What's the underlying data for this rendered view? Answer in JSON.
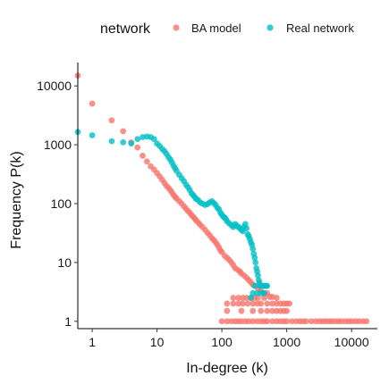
{
  "chart_data": {
    "type": "scatter",
    "xlabel": "In-degree (k)",
    "ylabel": "Frequency P(k)",
    "x_scale": "log",
    "y_scale": "log",
    "xlim": [
      0.6,
      25000
    ],
    "ylim": [
      0.75,
      25000
    ],
    "x_ticks": [
      {
        "value": 1,
        "label": "1"
      },
      {
        "value": 10,
        "label": "10"
      },
      {
        "value": 100,
        "label": "100"
      },
      {
        "value": 1000,
        "label": "1000"
      },
      {
        "value": 10000,
        "label": "10000"
      }
    ],
    "y_ticks": [
      {
        "value": 1,
        "label": "1"
      },
      {
        "value": 10,
        "label": "10"
      },
      {
        "value": 100,
        "label": "100"
      },
      {
        "value": 1000,
        "label": "1000"
      },
      {
        "value": 10000,
        "label": "10000"
      }
    ],
    "grid": false,
    "legend": {
      "title": "network",
      "placement": "top",
      "entries": [
        "BA model",
        "Real network"
      ]
    },
    "series": [
      {
        "name": "BA model",
        "color": "#F8766D",
        "points": [
          [
            0.6,
            15000
          ],
          [
            1,
            5000
          ],
          [
            2,
            2600
          ],
          [
            3,
            1700
          ],
          [
            4,
            1100
          ],
          [
            5,
            900
          ],
          [
            6,
            650
          ],
          [
            7,
            520
          ],
          [
            8,
            430
          ],
          [
            9,
            380
          ],
          [
            10,
            330
          ],
          [
            11,
            290
          ],
          [
            12,
            255
          ],
          [
            13,
            225
          ],
          [
            14,
            200
          ],
          [
            15,
            185
          ],
          [
            16,
            170
          ],
          [
            17,
            155
          ],
          [
            18,
            140
          ],
          [
            19,
            130
          ],
          [
            20,
            122
          ],
          [
            22,
            110
          ],
          [
            24,
            100
          ],
          [
            26,
            90
          ],
          [
            28,
            82
          ],
          [
            30,
            75
          ],
          [
            32,
            70
          ],
          [
            34,
            64
          ],
          [
            36,
            60
          ],
          [
            38,
            56
          ],
          [
            40,
            52
          ],
          [
            43,
            48
          ],
          [
            46,
            44
          ],
          [
            50,
            40
          ],
          [
            55,
            36
          ],
          [
            60,
            32
          ],
          [
            65,
            29
          ],
          [
            70,
            26
          ],
          [
            75,
            24
          ],
          [
            80,
            22
          ],
          [
            85,
            20
          ],
          [
            90,
            18
          ],
          [
            95,
            16
          ],
          [
            100,
            15
          ],
          [
            110,
            13
          ],
          [
            120,
            12
          ],
          [
            130,
            11
          ],
          [
            140,
            10
          ],
          [
            150,
            9
          ],
          [
            160,
            8
          ],
          [
            175,
            7.5
          ],
          [
            190,
            7
          ],
          [
            200,
            6.5
          ],
          [
            220,
            6
          ],
          [
            240,
            5.5
          ],
          [
            260,
            5
          ],
          [
            280,
            4.6
          ],
          [
            300,
            4.2
          ],
          [
            330,
            4
          ],
          [
            360,
            3.6
          ],
          [
            400,
            3.3
          ],
          [
            450,
            3
          ],
          [
            500,
            3
          ],
          [
            550,
            2.6
          ],
          [
            600,
            2.6
          ],
          [
            700,
            2.5
          ],
          [
            800,
            2
          ],
          [
            900,
            2
          ],
          [
            1000,
            2
          ],
          [
            1100,
            2
          ],
          [
            120,
            1.5
          ],
          [
            200,
            1.5
          ],
          [
            300,
            1.5
          ],
          [
            400,
            1.5
          ],
          [
            500,
            1.5
          ],
          [
            600,
            1.5
          ],
          [
            700,
            1.5
          ],
          [
            800,
            1.5
          ],
          [
            900,
            1.5
          ],
          [
            1000,
            1.5
          ],
          [
            120,
            2
          ],
          [
            150,
            2
          ],
          [
            180,
            2
          ],
          [
            210,
            2
          ],
          [
            250,
            2
          ],
          [
            300,
            2
          ],
          [
            350,
            2
          ],
          [
            400,
            2
          ],
          [
            500,
            2
          ],
          [
            600,
            2
          ],
          [
            700,
            2
          ],
          [
            150,
            2.5
          ],
          [
            180,
            2.5
          ],
          [
            210,
            2.5
          ],
          [
            240,
            2.5
          ],
          [
            280,
            2.5
          ],
          [
            320,
            2.5
          ],
          [
            360,
            2.5
          ],
          [
            450,
            2.5
          ],
          [
            100,
            1
          ],
          [
            120,
            1
          ],
          [
            140,
            1
          ],
          [
            160,
            1
          ],
          [
            180,
            1
          ],
          [
            200,
            1
          ],
          [
            230,
            1
          ],
          [
            260,
            1
          ],
          [
            300,
            1
          ],
          [
            350,
            1
          ],
          [
            400,
            1
          ],
          [
            450,
            1
          ],
          [
            500,
            1
          ],
          [
            600,
            1
          ],
          [
            700,
            1
          ],
          [
            800,
            1
          ],
          [
            900,
            1
          ],
          [
            1000,
            1
          ],
          [
            1200,
            1
          ],
          [
            1400,
            1
          ],
          [
            1600,
            1
          ],
          [
            1800,
            1
          ],
          [
            2000,
            1
          ],
          [
            2400,
            1
          ],
          [
            2800,
            1
          ],
          [
            3200,
            1
          ],
          [
            3600,
            1
          ],
          [
            4000,
            1
          ],
          [
            4500,
            1
          ],
          [
            5000,
            1
          ],
          [
            5600,
            1
          ],
          [
            6300,
            1
          ],
          [
            7000,
            1
          ],
          [
            8000,
            1
          ],
          [
            9000,
            1
          ],
          [
            10000,
            1
          ],
          [
            11500,
            1
          ],
          [
            13000,
            1
          ],
          [
            15000,
            1
          ],
          [
            17000,
            1
          ]
        ]
      },
      {
        "name": "Real network",
        "color": "#00BFC4",
        "points": [
          [
            0.6,
            1650
          ],
          [
            1,
            1450
          ],
          [
            2,
            1150
          ],
          [
            3,
            1100
          ],
          [
            4,
            1050
          ],
          [
            5,
            1250
          ],
          [
            6,
            1350
          ],
          [
            7,
            1380
          ],
          [
            8,
            1350
          ],
          [
            9,
            1250
          ],
          [
            10,
            1050
          ],
          [
            11,
            950
          ],
          [
            12,
            850
          ],
          [
            13,
            780
          ],
          [
            14,
            700
          ],
          [
            15,
            620
          ],
          [
            16,
            560
          ],
          [
            17,
            500
          ],
          [
            18,
            440
          ],
          [
            19,
            400
          ],
          [
            20,
            360
          ],
          [
            22,
            310
          ],
          [
            24,
            270
          ],
          [
            26,
            240
          ],
          [
            28,
            210
          ],
          [
            30,
            190
          ],
          [
            32,
            170
          ],
          [
            34,
            150
          ],
          [
            36,
            140
          ],
          [
            38,
            130
          ],
          [
            40,
            120
          ],
          [
            43,
            115
          ],
          [
            46,
            105
          ],
          [
            50,
            100
          ],
          [
            55,
            95
          ],
          [
            60,
            98
          ],
          [
            65,
            105
          ],
          [
            70,
            110
          ],
          [
            75,
            102
          ],
          [
            80,
            95
          ],
          [
            85,
            85
          ],
          [
            90,
            80
          ],
          [
            95,
            70
          ],
          [
            100,
            65
          ],
          [
            105,
            60
          ],
          [
            110,
            58
          ],
          [
            115,
            55
          ],
          [
            120,
            50
          ],
          [
            130,
            46
          ],
          [
            140,
            43
          ],
          [
            150,
            40
          ],
          [
            160,
            45
          ],
          [
            170,
            42
          ],
          [
            180,
            40
          ],
          [
            190,
            38
          ],
          [
            200,
            36
          ],
          [
            210,
            34
          ],
          [
            220,
            40
          ],
          [
            230,
            45
          ],
          [
            240,
            38
          ],
          [
            250,
            30
          ],
          [
            260,
            28
          ],
          [
            270,
            25
          ],
          [
            280,
            22
          ],
          [
            290,
            20
          ],
          [
            300,
            17
          ],
          [
            310,
            14
          ],
          [
            320,
            12
          ],
          [
            330,
            10
          ],
          [
            340,
            8
          ],
          [
            350,
            7
          ],
          [
            360,
            6
          ],
          [
            370,
            5
          ],
          [
            380,
            4.5
          ],
          [
            390,
            4
          ],
          [
            400,
            4
          ],
          [
            420,
            4
          ],
          [
            440,
            4
          ],
          [
            460,
            4
          ],
          [
            480,
            4
          ],
          [
            500,
            4
          ],
          [
            300,
            3
          ],
          [
            350,
            3
          ],
          [
            400,
            3
          ],
          [
            450,
            3
          ],
          [
            280,
            2.5
          ],
          [
            320,
            4
          ]
        ]
      }
    ]
  }
}
